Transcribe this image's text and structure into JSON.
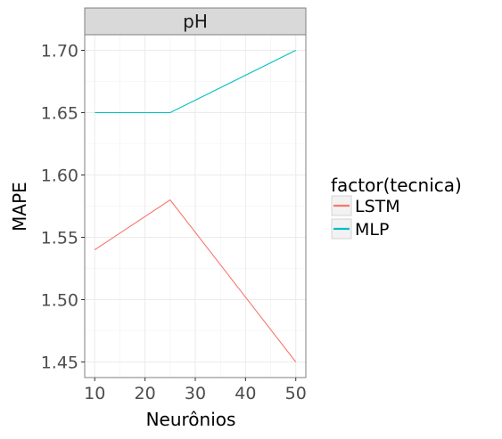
{
  "chart_data": {
    "type": "line",
    "facet_label": "pH",
    "xlabel": "Neurônios",
    "ylabel": "MAPE",
    "x": [
      10,
      25,
      50
    ],
    "xlim": [
      8,
      52
    ],
    "ylim": [
      1.4375,
      1.7125
    ],
    "x_ticks": [
      10,
      20,
      30,
      40,
      50
    ],
    "y_ticks": [
      1.45,
      1.5,
      1.55,
      1.6,
      1.65,
      1.7
    ],
    "y_tick_labels": [
      "1.45",
      "1.50",
      "1.55",
      "1.60",
      "1.65",
      "1.70"
    ],
    "grid": true,
    "legend_title": "factor(tecnica)",
    "legend_position": "right",
    "series": [
      {
        "name": "LSTM",
        "color": "#F8766D",
        "values": [
          1.54,
          1.58,
          1.45
        ]
      },
      {
        "name": "MLP",
        "color": "#00BFC4",
        "values": [
          1.65,
          1.65,
          1.7
        ]
      }
    ]
  }
}
